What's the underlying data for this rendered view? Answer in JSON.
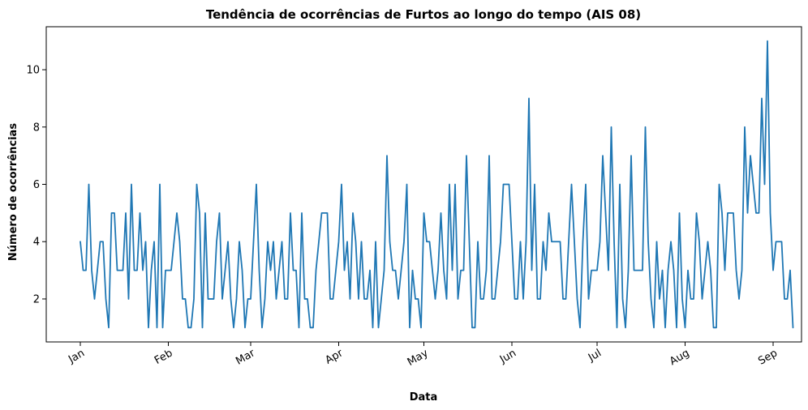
{
  "chart_data": {
    "type": "line",
    "title": "Tendência de ocorrências de Furtos ao longo do tempo (AIS 08)",
    "xlabel": "Data",
    "ylabel": "Número de ocorrências",
    "x_start": "2024-01-01",
    "x_end": "2024-08-31",
    "xlim": [
      "2023-12-20",
      "2024-09-11"
    ],
    "ylim": [
      0.5,
      11.5
    ],
    "x_ticks": [
      {
        "date": "2024-01-01",
        "label": "Jan"
      },
      {
        "date": "2024-02-01",
        "label": "Feb"
      },
      {
        "date": "2024-03-01",
        "label": "Mar"
      },
      {
        "date": "2024-04-01",
        "label": "Apr"
      },
      {
        "date": "2024-05-01",
        "label": "May"
      },
      {
        "date": "2024-06-01",
        "label": "Jun"
      },
      {
        "date": "2024-07-01",
        "label": "Jul"
      },
      {
        "date": "2024-08-01",
        "label": "Aug"
      },
      {
        "date": "2024-09-01",
        "label": "Sep"
      }
    ],
    "y_ticks": [
      2,
      4,
      6,
      8,
      10
    ],
    "grid": false,
    "legend": "none",
    "color": "#1f77b4",
    "series": [
      {
        "values": [
          4,
          3,
          3,
          6,
          3,
          2,
          3,
          4,
          4,
          2,
          1,
          5,
          5,
          3,
          3,
          3,
          5,
          2,
          6,
          3,
          3,
          5,
          3,
          4,
          1,
          3,
          4,
          1,
          6,
          1,
          3,
          3,
          3,
          4,
          5,
          4,
          2,
          2,
          1,
          1,
          2,
          6,
          5,
          1,
          5,
          2,
          2,
          2,
          4,
          5,
          2,
          3,
          4,
          2,
          1,
          2,
          4,
          3,
          1,
          2,
          2,
          4,
          6,
          3,
          1,
          2,
          4,
          3,
          4,
          2,
          3,
          4,
          2,
          2,
          5,
          3,
          3,
          1,
          5,
          2,
          2,
          1,
          1,
          3,
          4,
          5,
          5,
          5,
          2,
          2,
          3,
          4,
          6,
          3,
          4,
          2,
          5,
          4,
          2,
          4,
          2,
          2,
          3,
          1,
          4,
          1,
          2,
          3,
          7,
          4,
          3,
          3,
          2,
          3,
          4,
          6,
          1,
          3,
          2,
          2,
          1,
          5,
          4,
          4,
          3,
          2,
          3,
          5,
          3,
          2,
          6,
          3,
          6,
          2,
          3,
          3,
          7,
          4,
          1,
          1,
          4,
          2,
          2,
          3,
          7,
          2,
          2,
          3,
          4,
          6,
          6,
          6,
          4,
          2,
          2,
          4,
          2,
          4,
          9,
          3,
          6,
          2,
          2,
          4,
          3,
          5,
          4,
          4,
          4,
          4,
          2,
          2,
          4,
          6,
          4,
          2,
          1,
          4,
          6,
          2,
          3,
          3,
          3,
          4,
          7,
          5,
          3,
          8,
          4,
          1,
          6,
          2,
          1,
          3,
          7,
          3,
          3,
          3,
          3,
          8,
          4,
          2,
          1,
          4,
          2,
          3,
          1,
          3,
          4,
          3,
          1,
          5,
          2,
          1,
          3,
          2,
          2,
          5,
          4,
          2,
          3,
          4,
          3,
          1,
          1,
          6,
          5,
          3,
          5,
          5,
          5,
          3,
          2,
          3,
          8,
          5,
          7,
          6,
          5,
          5,
          9,
          6,
          11,
          5,
          3,
          4,
          4,
          4,
          2,
          2,
          3,
          1
        ]
      }
    ]
  }
}
